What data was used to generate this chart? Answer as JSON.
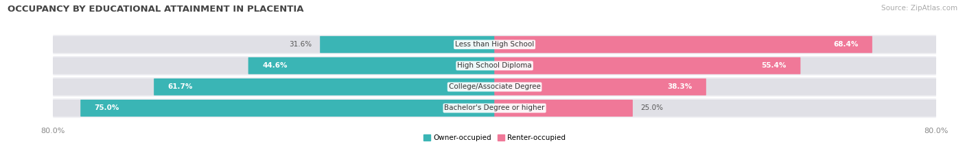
{
  "title": "OCCUPANCY BY EDUCATIONAL ATTAINMENT IN PLACENTIA",
  "source": "Source: ZipAtlas.com",
  "categories": [
    "Less than High School",
    "High School Diploma",
    "College/Associate Degree",
    "Bachelor's Degree or higher"
  ],
  "owner_pct": [
    31.6,
    44.6,
    61.7,
    75.0
  ],
  "renter_pct": [
    68.4,
    55.4,
    38.3,
    25.0
  ],
  "owner_color": "#3ab5b5",
  "renter_color": "#f07898",
  "bar_bg_color": "#e0e0e6",
  "row_bg_color": "#f0f0f4",
  "owner_label": "Owner-occupied",
  "renter_label": "Renter-occupied",
  "xlim": [
    -80,
    80
  ],
  "xtick_left": -80,
  "xtick_right": 80,
  "title_fontsize": 9.5,
  "source_fontsize": 7.5,
  "label_fontsize": 7.5,
  "pct_fontsize": 7.5,
  "tick_fontsize": 8,
  "bar_height": 0.72,
  "background_color": "#ffffff"
}
